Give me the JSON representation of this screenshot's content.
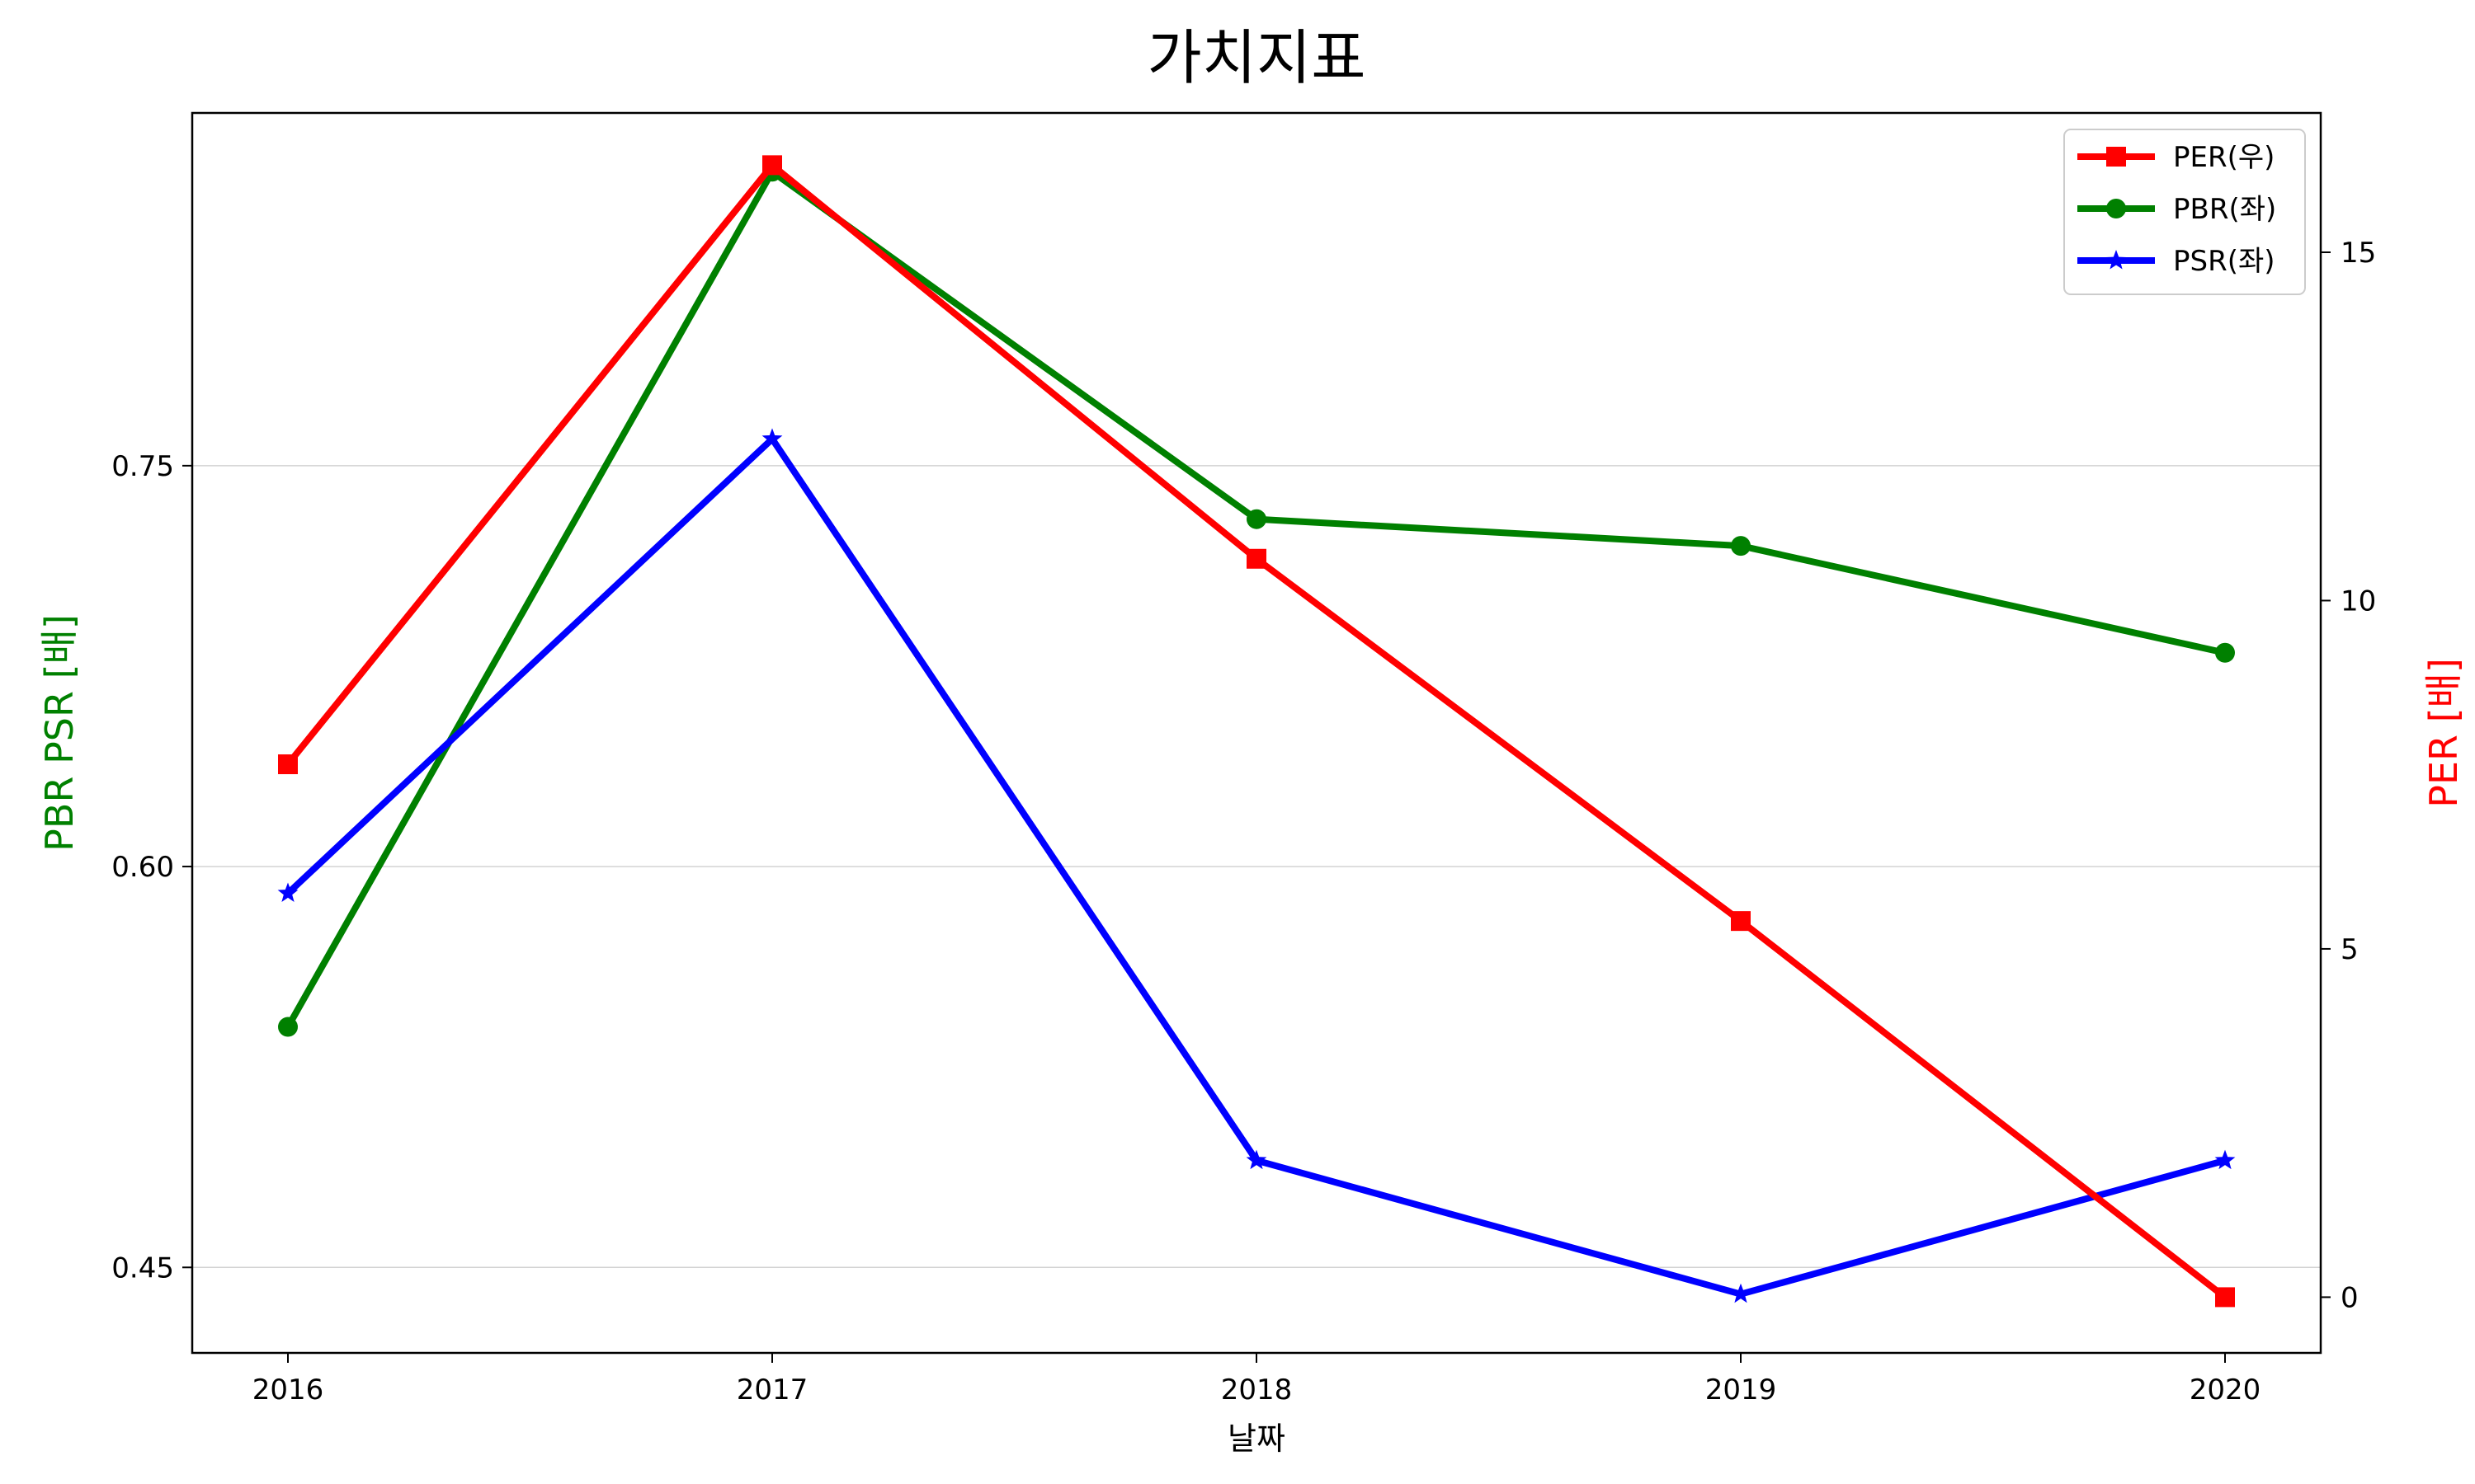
{
  "chart_data": {
    "type": "line",
    "title": "가치지표",
    "xlabel": "날짜",
    "ylabel_left": "PBR PSR [배]",
    "ylabel_right": "PER [배]",
    "categories": [
      "2016",
      "2017",
      "2018",
      "2019",
      "2020"
    ],
    "left_axis": {
      "ticks": [
        0.45,
        0.6,
        0.75
      ],
      "tick_labels": [
        "0.45",
        "0.60",
        "0.75"
      ],
      "range": [
        0.418,
        0.882
      ],
      "grid": true
    },
    "right_axis": {
      "ticks": [
        0,
        5,
        10,
        15
      ],
      "tick_labels": [
        "0",
        "5",
        "10",
        "15"
      ],
      "range": [
        -0.8,
        17.0
      ],
      "grid": false
    },
    "series": [
      {
        "name": "PER(우)",
        "axis": "right",
        "marker": "square",
        "color": "#ff0000",
        "values": [
          7.65,
          16.25,
          10.6,
          5.4,
          0.0
        ]
      },
      {
        "name": "PBR(좌)",
        "axis": "left",
        "marker": "circle",
        "color": "#008000",
        "values": [
          0.54,
          0.86,
          0.73,
          0.72,
          0.68
        ]
      },
      {
        "name": "PSR(좌)",
        "axis": "left",
        "marker": "star",
        "color": "#0000ff",
        "values": [
          0.59,
          0.76,
          0.49,
          0.44,
          0.49
        ]
      }
    ],
    "legend_position": "top-right",
    "colors": {
      "left_axis_label": "#008000",
      "right_axis_label": "#ff0000",
      "grid": "#d3d3d3"
    }
  }
}
